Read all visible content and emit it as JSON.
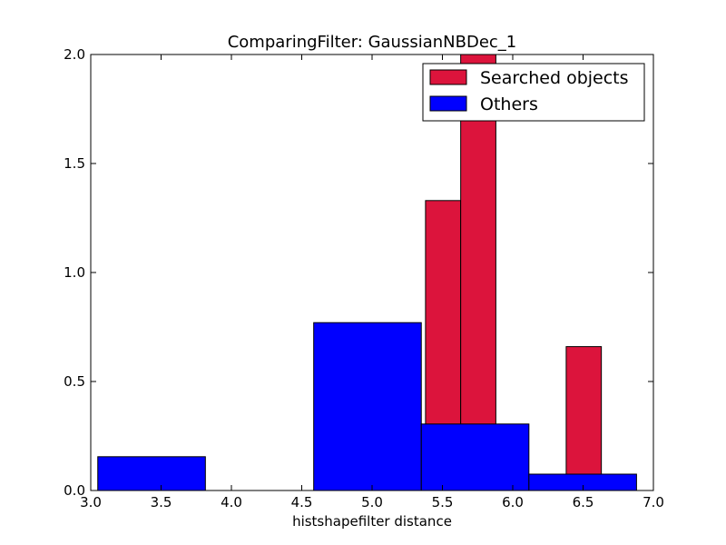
{
  "chart_data": {
    "type": "bar",
    "title": "ComparingFilter: GaussianNBDec_1",
    "xlabel": "histshapefilter distance",
    "ylabel": "",
    "xlim": [
      3.0,
      7.0
    ],
    "ylim": [
      0.0,
      2.0
    ],
    "xticks": [
      "3.0",
      "3.5",
      "4.0",
      "4.5",
      "5.0",
      "5.5",
      "6.0",
      "6.5",
      "7.0"
    ],
    "yticks": [
      "0.0",
      "0.5",
      "1.0",
      "1.5",
      "2.0"
    ],
    "legend_position": "top-right",
    "series": [
      {
        "name": "Searched objects",
        "color": "#dc143c",
        "bins": [
          {
            "x0": 5.38,
            "x1": 5.63,
            "value": 1.33
          },
          {
            "x0": 5.63,
            "x1": 5.88,
            "value": 2.0
          },
          {
            "x0": 6.38,
            "x1": 6.63,
            "value": 0.66
          }
        ]
      },
      {
        "name": "Others",
        "color": "#0000ff",
        "bins": [
          {
            "x0": 3.05,
            "x1": 3.815,
            "value": 0.155
          },
          {
            "x0": 4.585,
            "x1": 5.35,
            "value": 0.77
          },
          {
            "x0": 5.35,
            "x1": 6.115,
            "value": 0.305
          },
          {
            "x0": 6.115,
            "x1": 6.88,
            "value": 0.075
          }
        ]
      }
    ]
  }
}
